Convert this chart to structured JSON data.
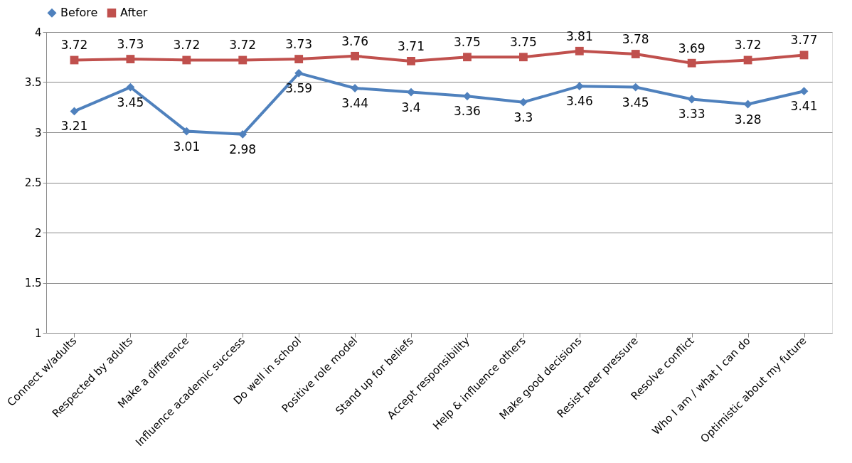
{
  "chart_data": {
    "type": "line",
    "categories": [
      "Connect w/adults",
      "Respected by adults",
      "Make a difference",
      "Influence academic success",
      "Do well in school",
      "Positive role model",
      "Stand up for beliefs",
      "Accept responsibility",
      "Help & influence others",
      "Make good decisions",
      "Resist peer pressure",
      "Resolve conflict",
      "Who I am / what I can do",
      "Optimistic about my future"
    ],
    "series": [
      {
        "name": "Before",
        "color": "#4f81bd",
        "marker": "diamond",
        "values": [
          3.21,
          3.45,
          3.01,
          2.98,
          3.59,
          3.44,
          3.4,
          3.36,
          3.3,
          3.46,
          3.45,
          3.33,
          3.28,
          3.41
        ]
      },
      {
        "name": "After",
        "color": "#c0504d",
        "marker": "square",
        "values": [
          3.72,
          3.73,
          3.72,
          3.72,
          3.73,
          3.76,
          3.71,
          3.75,
          3.75,
          3.81,
          3.78,
          3.69,
          3.72,
          3.77
        ]
      }
    ],
    "ylim": [
      1,
      4
    ],
    "yticks": [
      {
        "value": 1,
        "label": "1"
      },
      1.5,
      {
        "value": 2,
        "label": "2"
      },
      2.5,
      {
        "value": 3,
        "label": "3"
      },
      3.5,
      {
        "value": 4,
        "label": "4"
      }
    ],
    "grid": "y",
    "legend": "top",
    "data_labels": true,
    "line_style": "solid"
  }
}
